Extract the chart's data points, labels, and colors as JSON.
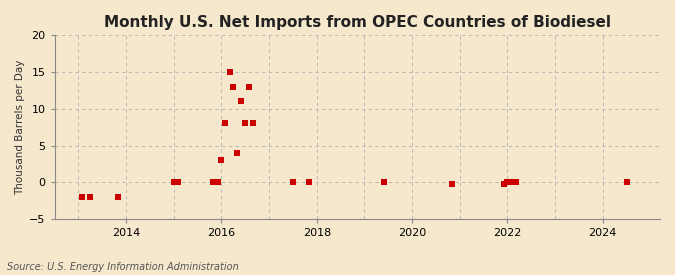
{
  "title": "Monthly U.S. Net Imports from OPEC Countries of Biodiesel",
  "ylabel": "Thousand Barrels per Day",
  "source_text": "Source: U.S. Energy Information Administration",
  "bg_outer": "#f5e8cc",
  "bg_inner": "#f5e8cc",
  "marker_color": "#cc0000",
  "marker_size": 4,
  "xlim": [
    2012.5,
    2025.2
  ],
  "ylim": [
    -5,
    20
  ],
  "yticks": [
    -5,
    0,
    5,
    10,
    15,
    20
  ],
  "xticks": [
    2014,
    2016,
    2018,
    2020,
    2022,
    2024
  ],
  "data_x": [
    2013.08,
    2013.25,
    2013.83,
    2015.0,
    2015.08,
    2015.83,
    2015.92,
    2016.0,
    2016.08,
    2016.17,
    2016.25,
    2016.33,
    2016.42,
    2016.5,
    2016.58,
    2016.67,
    2017.5,
    2017.83,
    2019.42,
    2020.83,
    2021.92,
    2022.0,
    2022.08,
    2022.17,
    2024.5
  ],
  "data_y": [
    -2,
    -2,
    -2,
    0,
    0,
    0,
    0,
    3,
    8,
    15,
    13,
    4,
    11,
    8,
    13,
    8,
    0,
    0,
    0,
    -0.3,
    -0.3,
    0,
    0,
    0,
    0
  ],
  "vgrid_x": [
    2013,
    2014,
    2015,
    2016,
    2017,
    2018,
    2019,
    2020,
    2021,
    2022,
    2023,
    2024
  ],
  "title_fontsize": 11
}
